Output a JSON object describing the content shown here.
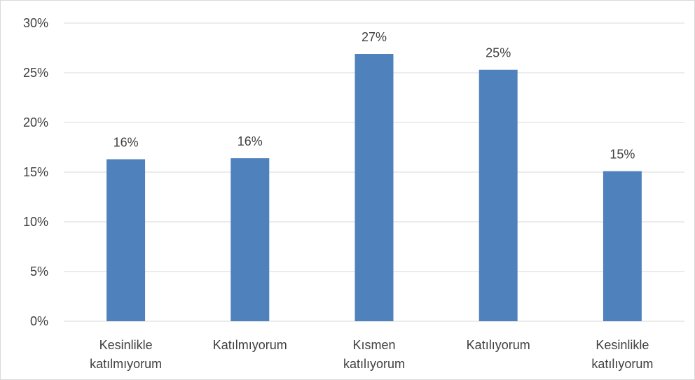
{
  "chart_data": {
    "type": "bar",
    "categories": [
      [
        "Kesinlikle",
        "katılmıyorum"
      ],
      [
        "Katılmıyorum"
      ],
      [
        "Kısmen",
        "katılıyorum"
      ],
      [
        "Katılıyorum"
      ],
      [
        "Kesinlikle",
        "katılıyorum"
      ]
    ],
    "values": [
      16.3,
      16.4,
      26.9,
      25.3,
      15.1
    ],
    "data_labels": [
      "16%",
      "16%",
      "27%",
      "25%",
      "15%"
    ],
    "ylim": [
      0,
      30
    ],
    "yticks": [
      0,
      5,
      10,
      15,
      20,
      25,
      30
    ],
    "ytick_labels": [
      "0%",
      "5%",
      "10%",
      "15%",
      "20%",
      "25%",
      "30%"
    ],
    "grid": true,
    "legend": "none",
    "colors": {
      "bar": "#4f81bd",
      "grid": "#d9d9d9",
      "axis": "#d9d9d9",
      "text": "#404040"
    }
  }
}
